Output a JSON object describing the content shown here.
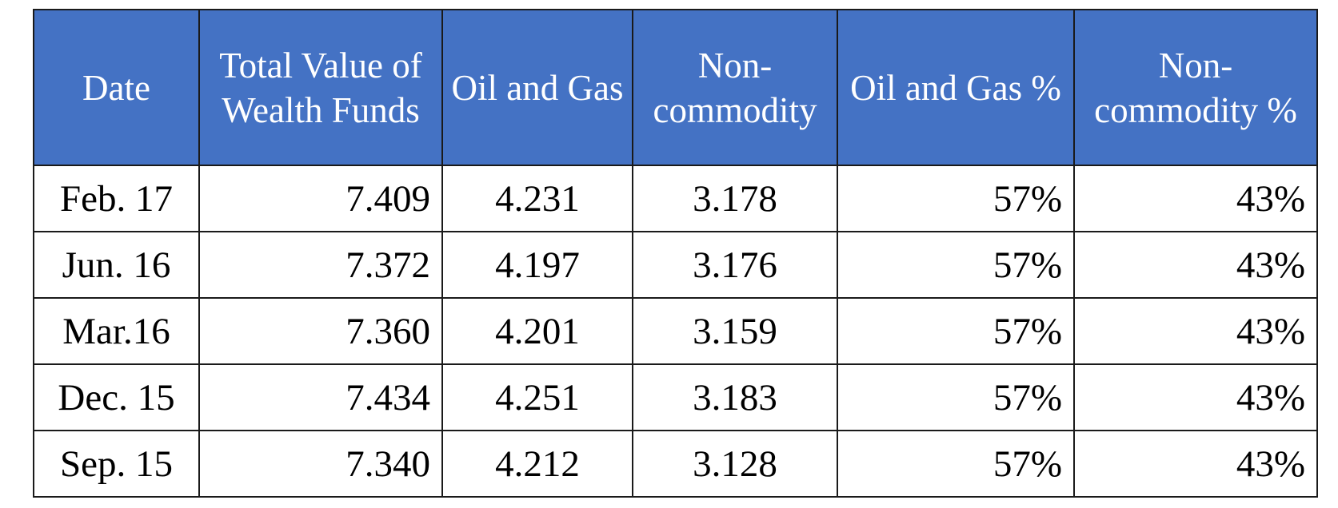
{
  "table": {
    "header": [
      "Date",
      "Total Value of Wealth Funds",
      "Oil and Gas",
      "Non-commodity",
      "Oil and Gas %",
      "Non-commodity %"
    ],
    "rows": [
      [
        "Feb. 17",
        "7.409",
        "4.231",
        "3.178",
        "57%",
        "43%"
      ],
      [
        "Jun. 16",
        "7.372",
        "4.197",
        "3.176",
        "57%",
        "43%"
      ],
      [
        "Mar.16",
        "7.360",
        "4.201",
        "3.159",
        "57%",
        "43%"
      ],
      [
        "Dec. 15",
        "7.434",
        "4.251",
        "3.183",
        "57%",
        "43%"
      ],
      [
        "Sep. 15",
        "7.340",
        "4.212",
        "3.128",
        "57%",
        "43%"
      ]
    ]
  }
}
